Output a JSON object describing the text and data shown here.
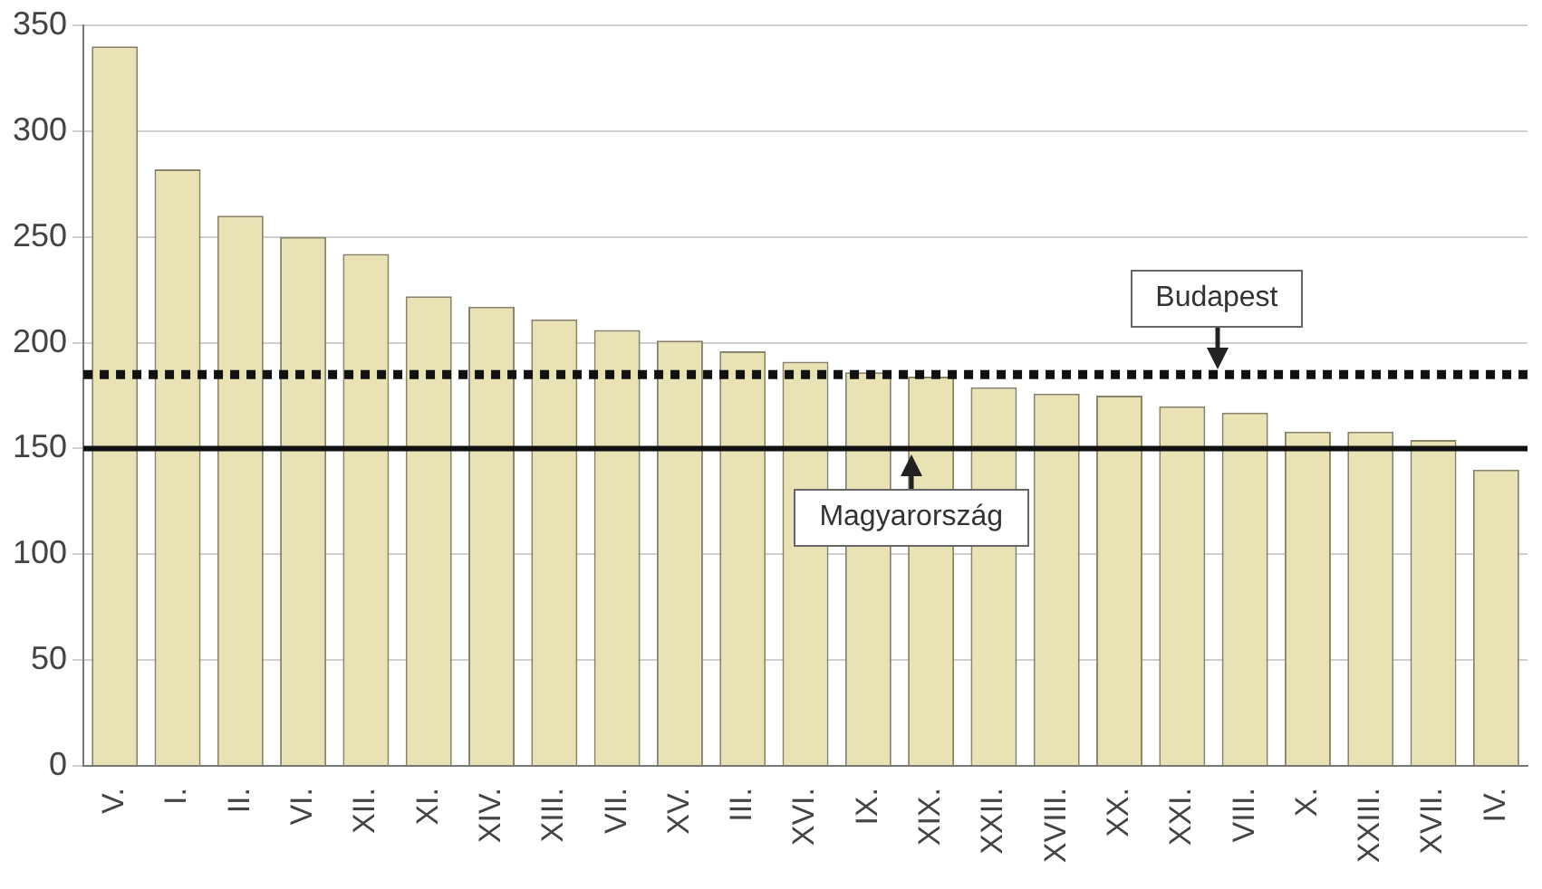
{
  "chart_data": {
    "type": "bar",
    "categories": [
      "V.",
      "I.",
      "II.",
      "VI.",
      "XII.",
      "XI.",
      "XIV.",
      "XIII.",
      "VII.",
      "XV.",
      "III.",
      "XVI.",
      "IX.",
      "XIX.",
      "XXII.",
      "XVIII.",
      "XX.",
      "XXI.",
      "VIII.",
      "X.",
      "XXIII.",
      "XVII.",
      "IV."
    ],
    "values": [
      340,
      282,
      260,
      250,
      242,
      222,
      217,
      211,
      206,
      201,
      196,
      191,
      186,
      184,
      179,
      176,
      175,
      170,
      167,
      158,
      158,
      154,
      140
    ],
    "color": "#e8e2b4",
    "ylim": [
      0,
      350
    ],
    "yticks": [
      0,
      50,
      100,
      150,
      200,
      250,
      300,
      350
    ],
    "grid": "y",
    "legend": false,
    "ref_lines": [
      {
        "axis": "y",
        "value": 185,
        "label": "Budapest",
        "color": "#111111",
        "line_style": "dotted"
      },
      {
        "axis": "y",
        "value": 150,
        "label": "Magyarország",
        "color": "#111111",
        "line_style": "solid"
      }
    ]
  }
}
